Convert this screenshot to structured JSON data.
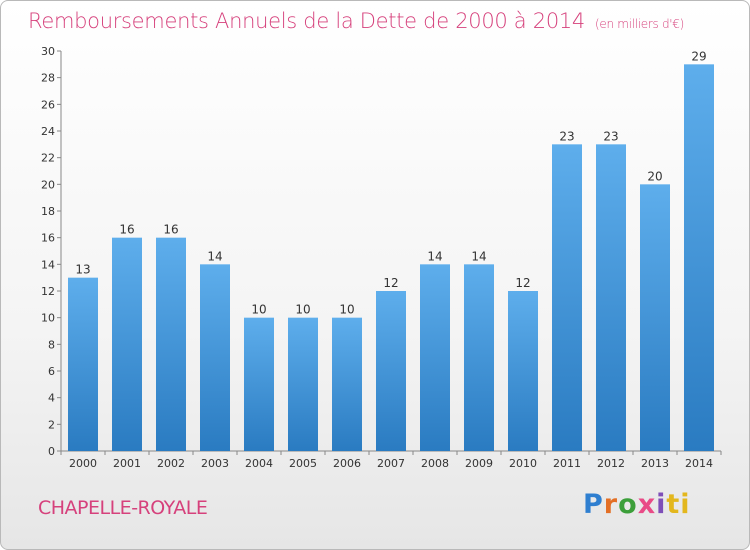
{
  "chart_data": {
    "type": "bar",
    "title": "Remboursements Annuels de la Dette de 2000 à 2014",
    "subtitle": "(en milliers d'€)",
    "categories": [
      "2000",
      "2001",
      "2002",
      "2003",
      "2004",
      "2005",
      "2006",
      "2007",
      "2008",
      "2009",
      "2010",
      "2011",
      "2012",
      "2013",
      "2014"
    ],
    "values": [
      13,
      16,
      16,
      14,
      10,
      10,
      10,
      12,
      14,
      14,
      12,
      23,
      23,
      20,
      29
    ],
    "data_labels": [
      "13",
      "16",
      "16",
      "14",
      "10",
      "10",
      "10",
      "12",
      "14",
      "14",
      "12",
      "23",
      "23",
      "20",
      "29"
    ],
    "yticks": [
      "0",
      "2",
      "4",
      "6",
      "8",
      "10",
      "12",
      "14",
      "16",
      "18",
      "20",
      "22",
      "24",
      "26",
      "28",
      "30"
    ],
    "ylim": [
      0,
      30
    ],
    "grid": false,
    "bar_color": "#3d8fd6"
  },
  "footer": {
    "commune": "CHAPELLE-ROYALE",
    "logo": [
      "P",
      "r",
      "o",
      "x",
      "i",
      "ti"
    ]
  }
}
